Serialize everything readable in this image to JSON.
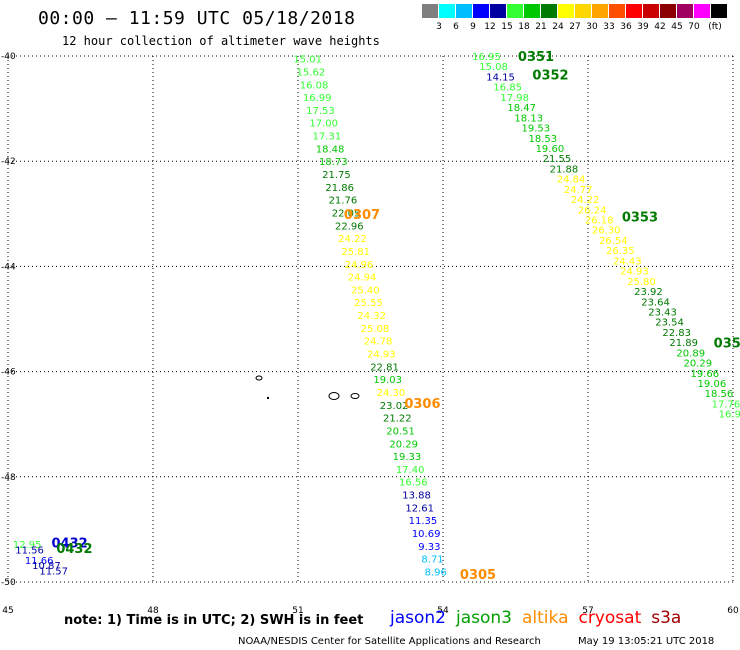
{
  "header": {
    "title": "00:00 – 11:59 UTC 05/18/2018",
    "subtitle": "12 hour collection of altimeter wave heights"
  },
  "colorbar": {
    "colors": [
      "#7f7f7f",
      "#00ffff",
      "#00bfff",
      "#0000ff",
      "#0000a0",
      "#33ff33",
      "#00c800",
      "#007a00",
      "#ffff00",
      "#ffd700",
      "#ffa500",
      "#ff5000",
      "#ff0000",
      "#c80000",
      "#8b0000",
      "#a00060",
      "#ff00ff",
      "#000000"
    ],
    "labels": [
      "3",
      "6",
      "9",
      "12",
      "15",
      "18",
      "21",
      "24",
      "27",
      "30",
      "33",
      "36",
      "39",
      "42",
      "45",
      "70",
      "(ft)"
    ]
  },
  "map": {
    "lon_range": [
      45,
      60
    ],
    "lat_range": [
      -50,
      -40
    ],
    "lon_ticks": [
      "45",
      "48",
      "51",
      "54",
      "57",
      "60"
    ],
    "lat_ticks": [
      "-40",
      "-42",
      "-44",
      "-46",
      "-48",
      "-50"
    ]
  },
  "tracks": [
    {
      "label": "0307",
      "label_color": "#ff8c00",
      "lon_top": 51.2,
      "lon_bottom": 53.85,
      "lat_top": -40.05,
      "lat_bottom": -49.8,
      "values": [
        "15.01",
        "15.62",
        "16.08",
        "16.99",
        "17.53",
        "17.00",
        "17.31",
        "18.48",
        "18.73",
        "21.75",
        "21.86",
        "21.76",
        "22.05",
        "22.96",
        "24.22",
        "25.81",
        "24.96",
        "24.94",
        "25.40",
        "25.55",
        "24.32",
        "25.08",
        "24.78",
        "24.93",
        "22.81",
        "19.03",
        "24.30",
        "23.02",
        "21.22",
        "20.51",
        "20.29",
        "19.33",
        "17.40",
        "16.56",
        "13.88",
        "12.61",
        "11.35",
        "10.69",
        "9.33",
        "8.71",
        "8.96"
      ]
    },
    {
      "label": "0351",
      "label_color": "#007a00",
      "lon_top": 54.9,
      "lon_bottom": 60.0,
      "lat_top": -40.0,
      "lat_bottom": -46.8,
      "values": [
        "16.95",
        "15.08",
        "14.15",
        "16.85",
        "17.98",
        "18.47",
        "18.13",
        "19.53",
        "18.53",
        "19.60",
        "21.55",
        "21.88",
        "24.84",
        "24.77",
        "24.22",
        "26.24",
        "26.18",
        "26.30",
        "26.54",
        "26.35",
        "24.43",
        "24.93",
        "25.80",
        "23.92",
        "23.64",
        "23.43",
        "23.54",
        "22.83",
        "21.89",
        "20.89",
        "20.29",
        "19.66",
        "19.06",
        "18.56",
        "17.76",
        "16.96"
      ]
    }
  ],
  "track_labels": [
    {
      "text": "0307",
      "color": "#ff8c00",
      "lon": 51.95,
      "lat": -43.0
    },
    {
      "text": "0306",
      "color": "#ff8c00",
      "lon": 53.2,
      "lat": -46.6
    },
    {
      "text": "0305",
      "color": "#ff8c00",
      "lon": 54.35,
      "lat": -49.85
    },
    {
      "text": "0351",
      "color": "#007a00",
      "lon": 55.55,
      "lat": -40.0
    },
    {
      "text": "0352",
      "color": "#007a00",
      "lon": 55.85,
      "lat": -40.35
    },
    {
      "text": "0353",
      "color": "#007a00",
      "lon": 57.7,
      "lat": -43.05
    },
    {
      "text": "035",
      "color": "#007a00",
      "lon": 59.6,
      "lat": -45.45
    },
    {
      "text": "0432",
      "color": "#0000cc",
      "lon": 45.9,
      "lat": -49.25
    },
    {
      "text": "0432",
      "color": "#007a00",
      "lon": 46.0,
      "lat": -49.35
    }
  ],
  "small_track": {
    "values": [
      "12.95",
      "11.56",
      "11.66",
      "10.87",
      "11.57"
    ],
    "colors": [
      "#33ff33",
      "#0000a0",
      "#0000ff",
      "#0000a0",
      "#0000a0"
    ],
    "lons": [
      45.1,
      45.15,
      45.35,
      45.5,
      45.65
    ],
    "lats": [
      -49.28,
      -49.38,
      -49.58,
      -49.68,
      -49.78
    ]
  },
  "note": "note: 1) Time is in UTC; 2) SWH is in feet",
  "legend": [
    {
      "name": "jason2",
      "color": "#0000ff"
    },
    {
      "name": "jason3",
      "color": "#00a000"
    },
    {
      "name": "altika",
      "color": "#ff8c00"
    },
    {
      "name": "cryosat",
      "color": "#ff0000"
    },
    {
      "name": "s3a",
      "color": "#a00000"
    }
  ],
  "credit": "NOAA/NESDIS Center for Satellite Applications and Research",
  "timestamp": "May 19 13:05:21 UTC 2018"
}
